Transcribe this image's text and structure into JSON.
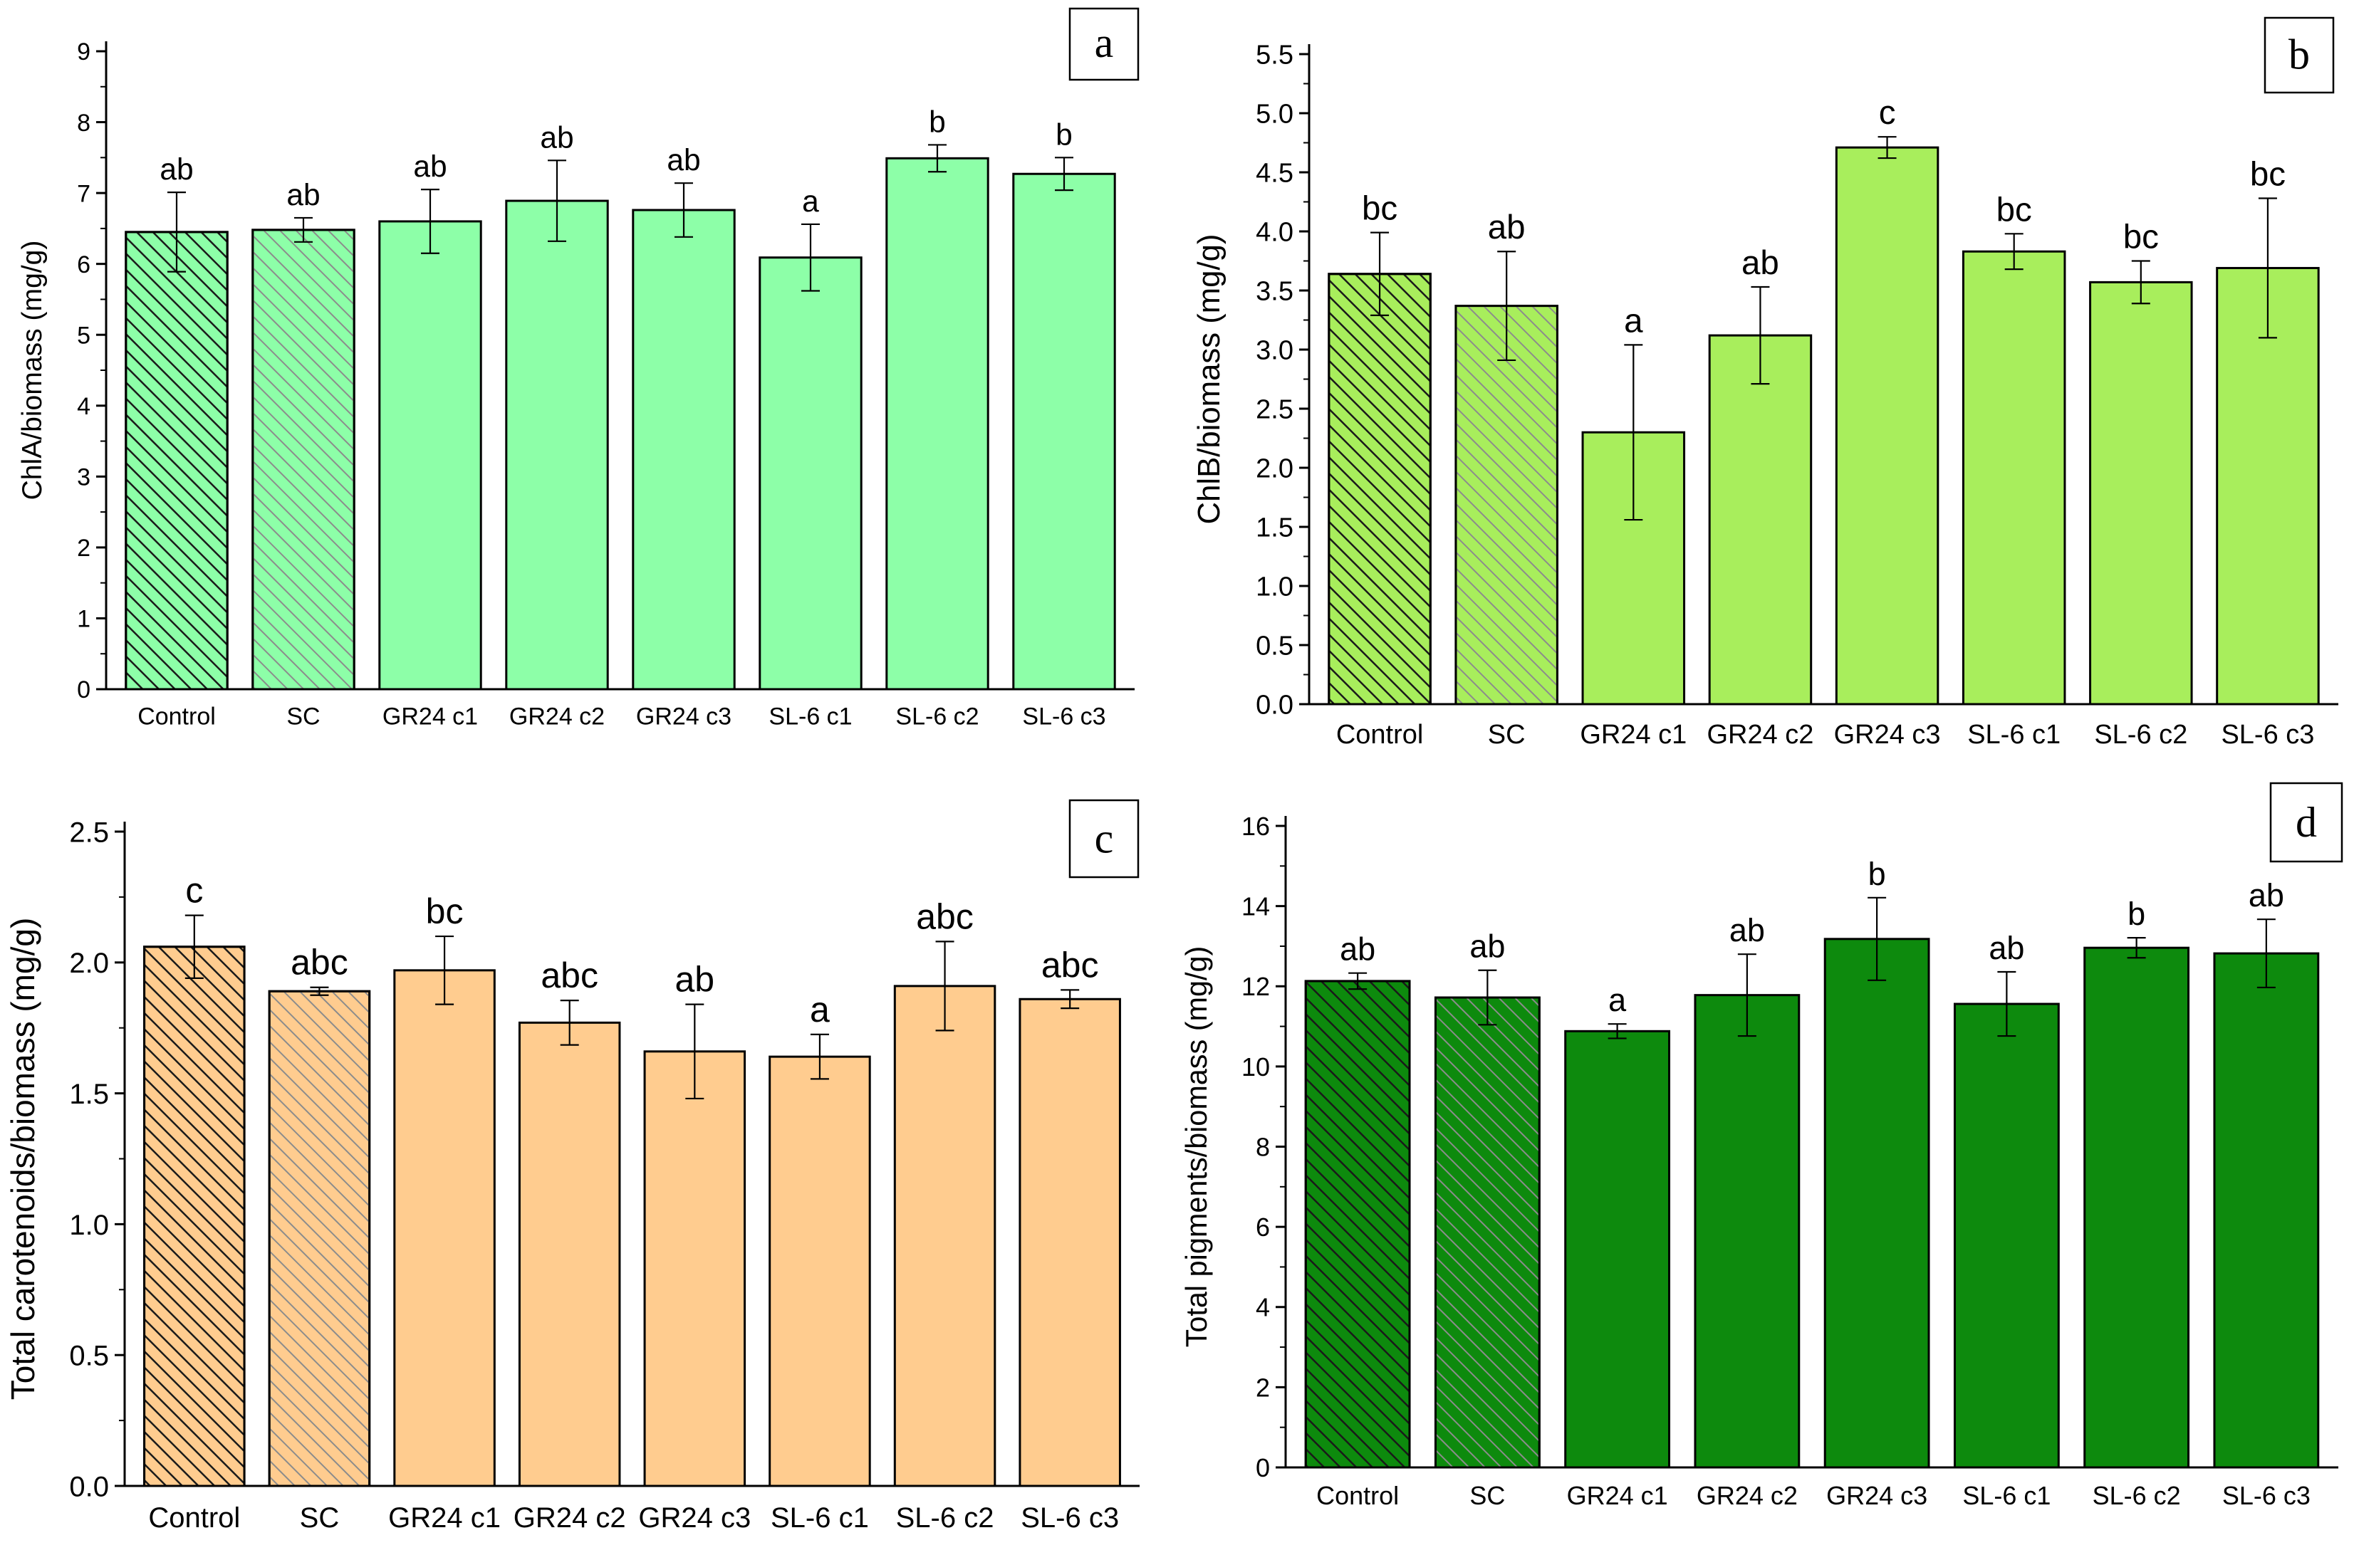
{
  "colors": {
    "chla": "#8DFFA8",
    "chlb": "#A8EE5C",
    "carot": "#FFCC8F",
    "total": "#0D8A0D",
    "axis": "#000000",
    "hatch_dark": "#1a1a1a",
    "hatch_light": "#8c8c8c"
  },
  "chart_data": [
    {
      "panel": "a",
      "type": "bar",
      "categories": [
        "Control",
        "SC",
        "GR24 c1",
        "GR24 c2",
        "GR24 c3",
        "SL-6 c1",
        "SL-6 c2",
        "SL-6 c3"
      ],
      "values": [
        6.45,
        6.48,
        6.6,
        6.89,
        6.76,
        6.09,
        7.49,
        7.27
      ],
      "errors": [
        0.56,
        0.17,
        0.45,
        0.57,
        0.38,
        0.47,
        0.19,
        0.23
      ],
      "letters": [
        "ab",
        "ab",
        "ab",
        "ab",
        "ab",
        "a",
        "b",
        "b"
      ],
      "patterns": [
        "hatch-dark",
        "hatch-light",
        "solid",
        "solid",
        "solid",
        "solid",
        "solid",
        "solid"
      ],
      "ylabel": "ChlA/biomass (mg/g)",
      "ylim": [
        0,
        9
      ],
      "yticks": [
        "0",
        "1",
        "2",
        "3",
        "4",
        "5",
        "6",
        "7",
        "8",
        "9"
      ],
      "grid": false,
      "color_key": "chla"
    },
    {
      "panel": "b",
      "type": "bar",
      "categories": [
        "Control",
        "SC",
        "GR24 c1",
        "GR24 c2",
        "GR24 c3",
        "SL-6 c1",
        "SL-6 c2",
        "SL-6 c3"
      ],
      "values": [
        3.64,
        3.37,
        2.3,
        3.12,
        4.71,
        3.83,
        3.57,
        3.69
      ],
      "errors": [
        0.35,
        0.46,
        0.74,
        0.41,
        0.09,
        0.15,
        0.18,
        0.59
      ],
      "letters": [
        "bc",
        "ab",
        "a",
        "ab",
        "c",
        "bc",
        "bc",
        "bc"
      ],
      "patterns": [
        "hatch-dark",
        "hatch-light",
        "solid",
        "solid",
        "solid",
        "solid",
        "solid",
        "solid"
      ],
      "ylabel": "ChlB/biomass (mg/g)",
      "ylim": [
        0,
        5.5
      ],
      "yticks": [
        "0.0",
        "0.5",
        "1.0",
        "1.5",
        "2.0",
        "2.5",
        "3.0",
        "3.5",
        "4.0",
        "4.5",
        "5.0",
        "5.5"
      ],
      "grid": false,
      "color_key": "chlb"
    },
    {
      "panel": "c",
      "type": "bar",
      "categories": [
        "Control",
        "SC",
        "GR24 c1",
        "GR24 c2",
        "GR24 c3",
        "SL-6 c1",
        "SL-6 c2",
        "SL-6 c3"
      ],
      "values": [
        2.06,
        1.89,
        1.97,
        1.77,
        1.66,
        1.64,
        1.91,
        1.86
      ],
      "errors": [
        0.12,
        0.015,
        0.13,
        0.085,
        0.18,
        0.085,
        0.17,
        0.035
      ],
      "letters": [
        "c",
        "abc",
        "bc",
        "abc",
        "ab",
        "a",
        "abc",
        "abc"
      ],
      "patterns": [
        "hatch-dark",
        "hatch-light",
        "solid",
        "solid",
        "solid",
        "solid",
        "solid",
        "solid"
      ],
      "ylabel": "Total carotenoids/biomass (mg/g)",
      "ylim": [
        0,
        2.5
      ],
      "yticks": [
        "0.0",
        "0.5",
        "1.0",
        "1.5",
        "2.0",
        "2.5"
      ],
      "grid": false,
      "color_key": "carot"
    },
    {
      "panel": "d",
      "type": "bar",
      "categories": [
        "Control",
        "SC",
        "GR24 c1",
        "GR24 c2",
        "GR24 c3",
        "SL-6 c1",
        "SL-6 c2",
        "SL-6 c3"
      ],
      "values": [
        12.13,
        11.72,
        10.88,
        11.78,
        13.18,
        11.56,
        12.96,
        12.82
      ],
      "errors": [
        0.2,
        0.68,
        0.18,
        1.02,
        1.03,
        0.8,
        0.25,
        0.85
      ],
      "letters": [
        "ab",
        "ab",
        "a",
        "ab",
        "b",
        "ab",
        "b",
        "ab"
      ],
      "patterns": [
        "hatch-dark",
        "hatch-light",
        "solid",
        "solid",
        "solid",
        "solid",
        "solid",
        "solid"
      ],
      "ylabel": "Total pigments/biomass (mg/g)",
      "ylim": [
        0,
        16
      ],
      "yticks": [
        "0",
        "2",
        "4",
        "6",
        "8",
        "10",
        "12",
        "14",
        "16"
      ],
      "grid": false,
      "color_key": "total"
    }
  ]
}
